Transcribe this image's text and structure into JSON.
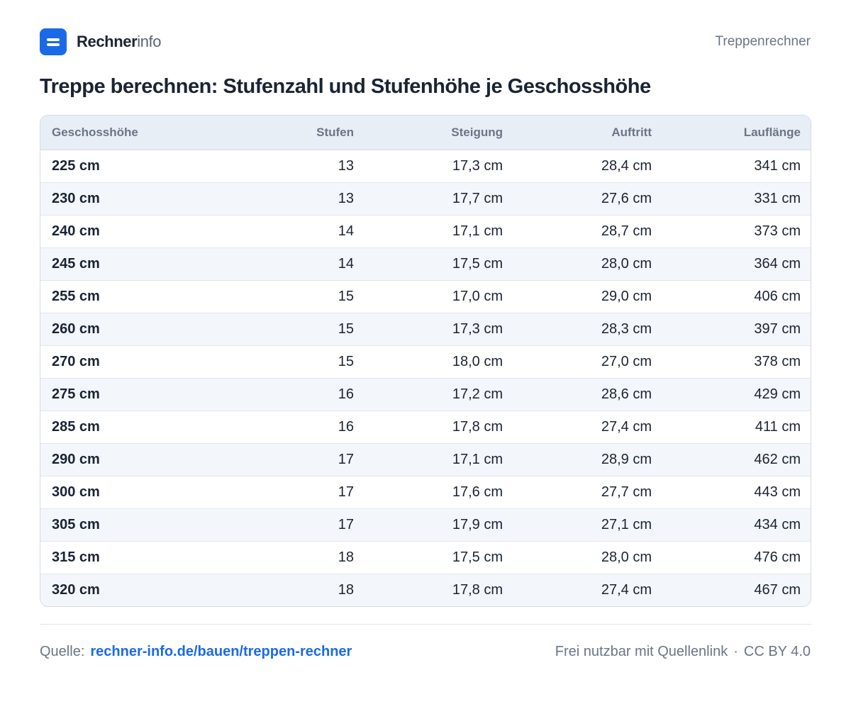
{
  "header": {
    "brand_bold": "Rechner",
    "brand_light": "info",
    "section": "Treppenrechner"
  },
  "title": "Treppe berechnen: Stufenzahl und Stufenhöhe je Geschosshöhe",
  "table": {
    "columns": [
      "Geschosshöhe",
      "Stufen",
      "Steigung",
      "Auftritt",
      "Lauflänge"
    ],
    "rows": [
      [
        "225 cm",
        "13",
        "17,3 cm",
        "28,4 cm",
        "341 cm"
      ],
      [
        "230 cm",
        "13",
        "17,7 cm",
        "27,6 cm",
        "331 cm"
      ],
      [
        "240 cm",
        "14",
        "17,1 cm",
        "28,7 cm",
        "373 cm"
      ],
      [
        "245 cm",
        "14",
        "17,5 cm",
        "28,0 cm",
        "364 cm"
      ],
      [
        "255 cm",
        "15",
        "17,0 cm",
        "29,0 cm",
        "406 cm"
      ],
      [
        "260 cm",
        "15",
        "17,3 cm",
        "28,3 cm",
        "397 cm"
      ],
      [
        "270 cm",
        "15",
        "18,0 cm",
        "27,0 cm",
        "378 cm"
      ],
      [
        "275 cm",
        "16",
        "17,2 cm",
        "28,6 cm",
        "429 cm"
      ],
      [
        "285 cm",
        "16",
        "17,8 cm",
        "27,4 cm",
        "411 cm"
      ],
      [
        "290 cm",
        "17",
        "17,1 cm",
        "28,9 cm",
        "462 cm"
      ],
      [
        "300 cm",
        "17",
        "17,6 cm",
        "27,7 cm",
        "443 cm"
      ],
      [
        "305 cm",
        "17",
        "17,9 cm",
        "27,1 cm",
        "434 cm"
      ],
      [
        "315 cm",
        "18",
        "17,5 cm",
        "28,0 cm",
        "476 cm"
      ],
      [
        "320 cm",
        "18",
        "17,8 cm",
        "27,4 cm",
        "467 cm"
      ]
    ]
  },
  "footer": {
    "source_label": "Quelle:",
    "source_link": "rechner-info.de/bauen/treppen-rechner",
    "license_text": "Frei nutzbar mit Quellenlink",
    "separator": "·",
    "license": "CC BY 4.0"
  },
  "colors": {
    "accent": "#1a6ae8",
    "text": "#1b2433",
    "muted": "#6b7586",
    "header_bg": "#e8eef6",
    "row_alt": "#f3f6fa"
  },
  "icons": {
    "logo": "menu-lines-icon"
  }
}
